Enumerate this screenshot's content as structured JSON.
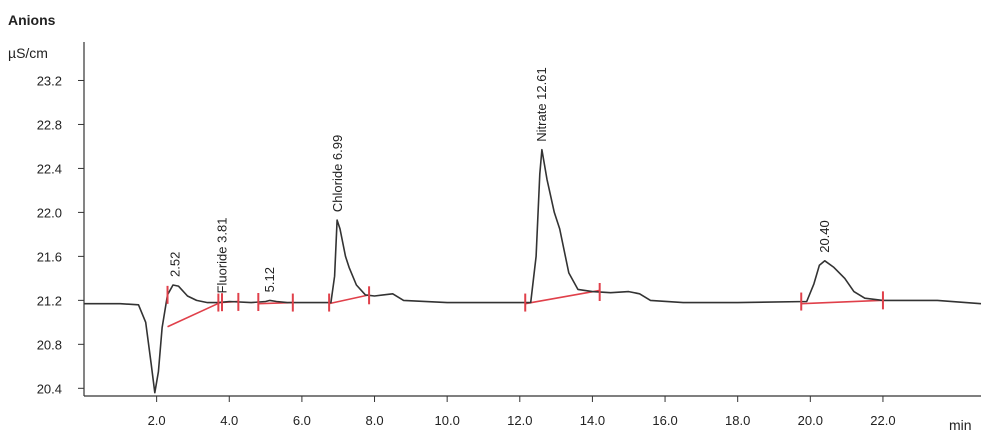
{
  "chart_data": {
    "type": "line",
    "title": "Anions",
    "ylabel": "µS/cm",
    "xlabel": "min",
    "xlim": [
      0,
      24.7
    ],
    "ylim": [
      20.33,
      23.55
    ],
    "x_ticks": [
      2.0,
      4.0,
      6.0,
      8.0,
      10.0,
      12.0,
      14.0,
      16.0,
      18.0,
      20.0,
      22.0
    ],
    "x_tick_labels": [
      "2.0",
      "4.0",
      "6.0",
      "8.0",
      "10.0",
      "12.0",
      "14.0",
      "16.0",
      "18.0",
      "20.0",
      "22.0"
    ],
    "y_ticks": [
      20.4,
      20.8,
      21.2,
      21.6,
      22.0,
      22.4,
      22.8,
      23.2
    ],
    "y_tick_labels": [
      "20.4",
      "20.8",
      "21.2",
      "21.6",
      "22.0",
      "22.4",
      "22.8",
      "23.2"
    ],
    "grid": false,
    "line_color": "#333333",
    "baseline_color": "#e0404a",
    "series": [
      {
        "x": [
          0,
          1.0,
          1.5,
          1.7,
          1.85,
          1.95,
          2.05,
          2.15,
          2.3,
          2.45,
          2.6,
          2.85,
          3.1,
          3.4,
          3.7,
          4.0,
          4.6,
          5.0,
          5.12,
          5.3,
          5.6,
          6.2,
          6.8,
          6.9,
          6.97,
          7.05,
          7.2,
          7.3,
          7.5,
          7.75,
          8.0,
          8.5,
          8.8,
          10.0,
          12.0,
          12.3,
          12.45,
          12.55,
          12.61,
          12.75,
          12.95,
          13.1,
          13.35,
          13.6,
          14.0,
          14.5,
          15.0,
          15.3,
          15.6,
          16.5,
          18.0,
          19.9,
          20.1,
          20.25,
          20.4,
          20.65,
          20.95,
          21.2,
          21.5,
          22.0,
          23.0,
          23.5,
          24.7
        ],
        "y": [
          21.17,
          21.17,
          21.16,
          21.0,
          20.62,
          20.36,
          20.55,
          20.95,
          21.25,
          21.34,
          21.33,
          21.24,
          21.2,
          21.18,
          21.18,
          21.19,
          21.18,
          21.19,
          21.2,
          21.19,
          21.18,
          21.18,
          21.18,
          21.42,
          21.93,
          21.85,
          21.6,
          21.5,
          21.34,
          21.25,
          21.24,
          21.26,
          21.2,
          21.18,
          21.18,
          21.18,
          21.6,
          22.35,
          22.57,
          22.3,
          22.0,
          21.85,
          21.45,
          21.3,
          21.28,
          21.27,
          21.28,
          21.26,
          21.2,
          21.18,
          21.18,
          21.19,
          21.35,
          21.52,
          21.56,
          21.5,
          21.4,
          21.28,
          21.22,
          21.2,
          21.2,
          21.2,
          21.17
        ]
      }
    ],
    "peak_labels": [
      {
        "label": "2.52",
        "x": 2.52,
        "y": 21.34
      },
      {
        "label": "Fluoride 3.81",
        "x": 3.81,
        "y": 21.19
      },
      {
        "label": "5.12",
        "x": 5.12,
        "y": 21.2
      },
      {
        "label": "Chloride 6.99",
        "x": 6.99,
        "y": 21.93
      },
      {
        "label": "Nitrate 12.61",
        "x": 12.61,
        "y": 22.57
      },
      {
        "label": "20.40",
        "x": 20.4,
        "y": 21.56
      }
    ],
    "baselines": [
      {
        "from": [
          2.3,
          20.96
        ],
        "to": [
          3.75,
          21.18
        ]
      },
      {
        "from": [
          3.75,
          21.18
        ],
        "to": [
          4.25,
          21.19
        ]
      },
      {
        "from": [
          4.8,
          21.17
        ],
        "to": [
          5.75,
          21.18
        ]
      },
      {
        "from": [
          6.75,
          21.17
        ],
        "to": [
          7.85,
          21.25
        ]
      },
      {
        "from": [
          12.15,
          21.17
        ],
        "to": [
          14.2,
          21.29
        ]
      },
      {
        "from": [
          19.75,
          21.17
        ],
        "to": [
          22.0,
          21.2
        ]
      }
    ],
    "integration_marks": [
      2.3,
      3.7,
      3.8,
      4.25,
      4.8,
      5.75,
      6.75,
      7.85,
      12.15,
      14.2,
      19.75,
      22.0
    ]
  }
}
